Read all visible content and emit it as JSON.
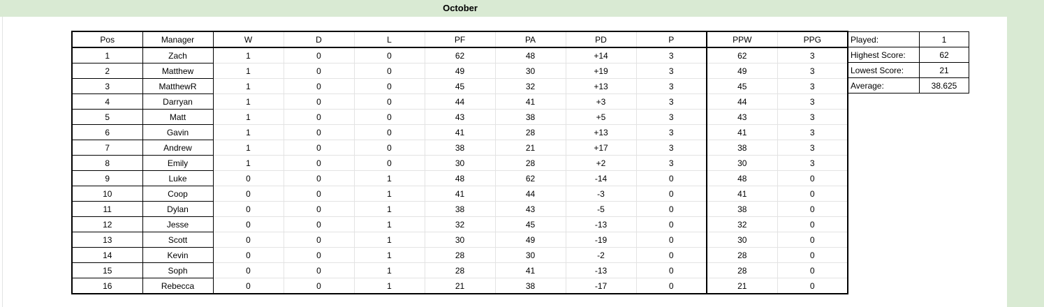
{
  "sheet": {
    "title": "October"
  },
  "standings": {
    "headers": [
      "Pos",
      "Manager",
      "W",
      "D",
      "L",
      "PF",
      "PA",
      "PD",
      "P",
      "PPW",
      "PPG"
    ],
    "rows": [
      [
        "1",
        "Zach",
        "1",
        "0",
        "0",
        "62",
        "48",
        "+14",
        "3",
        "62",
        "3"
      ],
      [
        "2",
        "Matthew",
        "1",
        "0",
        "0",
        "49",
        "30",
        "+19",
        "3",
        "49",
        "3"
      ],
      [
        "3",
        "MatthewR",
        "1",
        "0",
        "0",
        "45",
        "32",
        "+13",
        "3",
        "45",
        "3"
      ],
      [
        "4",
        "Darryan",
        "1",
        "0",
        "0",
        "44",
        "41",
        "+3",
        "3",
        "44",
        "3"
      ],
      [
        "5",
        "Matt",
        "1",
        "0",
        "0",
        "43",
        "38",
        "+5",
        "3",
        "43",
        "3"
      ],
      [
        "6",
        "Gavin",
        "1",
        "0",
        "0",
        "41",
        "28",
        "+13",
        "3",
        "41",
        "3"
      ],
      [
        "7",
        "Andrew",
        "1",
        "0",
        "0",
        "38",
        "21",
        "+17",
        "3",
        "38",
        "3"
      ],
      [
        "8",
        "Emily",
        "1",
        "0",
        "0",
        "30",
        "28",
        "+2",
        "3",
        "30",
        "3"
      ],
      [
        "9",
        "Luke",
        "0",
        "0",
        "1",
        "48",
        "62",
        "-14",
        "0",
        "48",
        "0"
      ],
      [
        "10",
        "Coop",
        "0",
        "0",
        "1",
        "41",
        "44",
        "-3",
        "0",
        "41",
        "0"
      ],
      [
        "11",
        "Dylan",
        "0",
        "0",
        "1",
        "38",
        "43",
        "-5",
        "0",
        "38",
        "0"
      ],
      [
        "12",
        "Jesse",
        "0",
        "0",
        "1",
        "32",
        "45",
        "-13",
        "0",
        "32",
        "0"
      ],
      [
        "13",
        "Scott",
        "0",
        "0",
        "1",
        "30",
        "49",
        "-19",
        "0",
        "30",
        "0"
      ],
      [
        "14",
        "Kevin",
        "0",
        "0",
        "1",
        "28",
        "30",
        "-2",
        "0",
        "28",
        "0"
      ],
      [
        "15",
        "Soph",
        "0",
        "0",
        "1",
        "28",
        "41",
        "-13",
        "0",
        "28",
        "0"
      ],
      [
        "16",
        "Rebecca",
        "0",
        "0",
        "1",
        "21",
        "38",
        "-17",
        "0",
        "21",
        "0"
      ]
    ]
  },
  "stats": [
    {
      "label": "Played:",
      "value": "1"
    },
    {
      "label": "Highest Score:",
      "value": "62"
    },
    {
      "label": "Lowest Score:",
      "value": "21"
    },
    {
      "label": "Average:",
      "value": "38.625"
    }
  ],
  "colors": {
    "header_green": "#d9ead3",
    "border": "#000000",
    "gridline": "#e3e3e3"
  }
}
